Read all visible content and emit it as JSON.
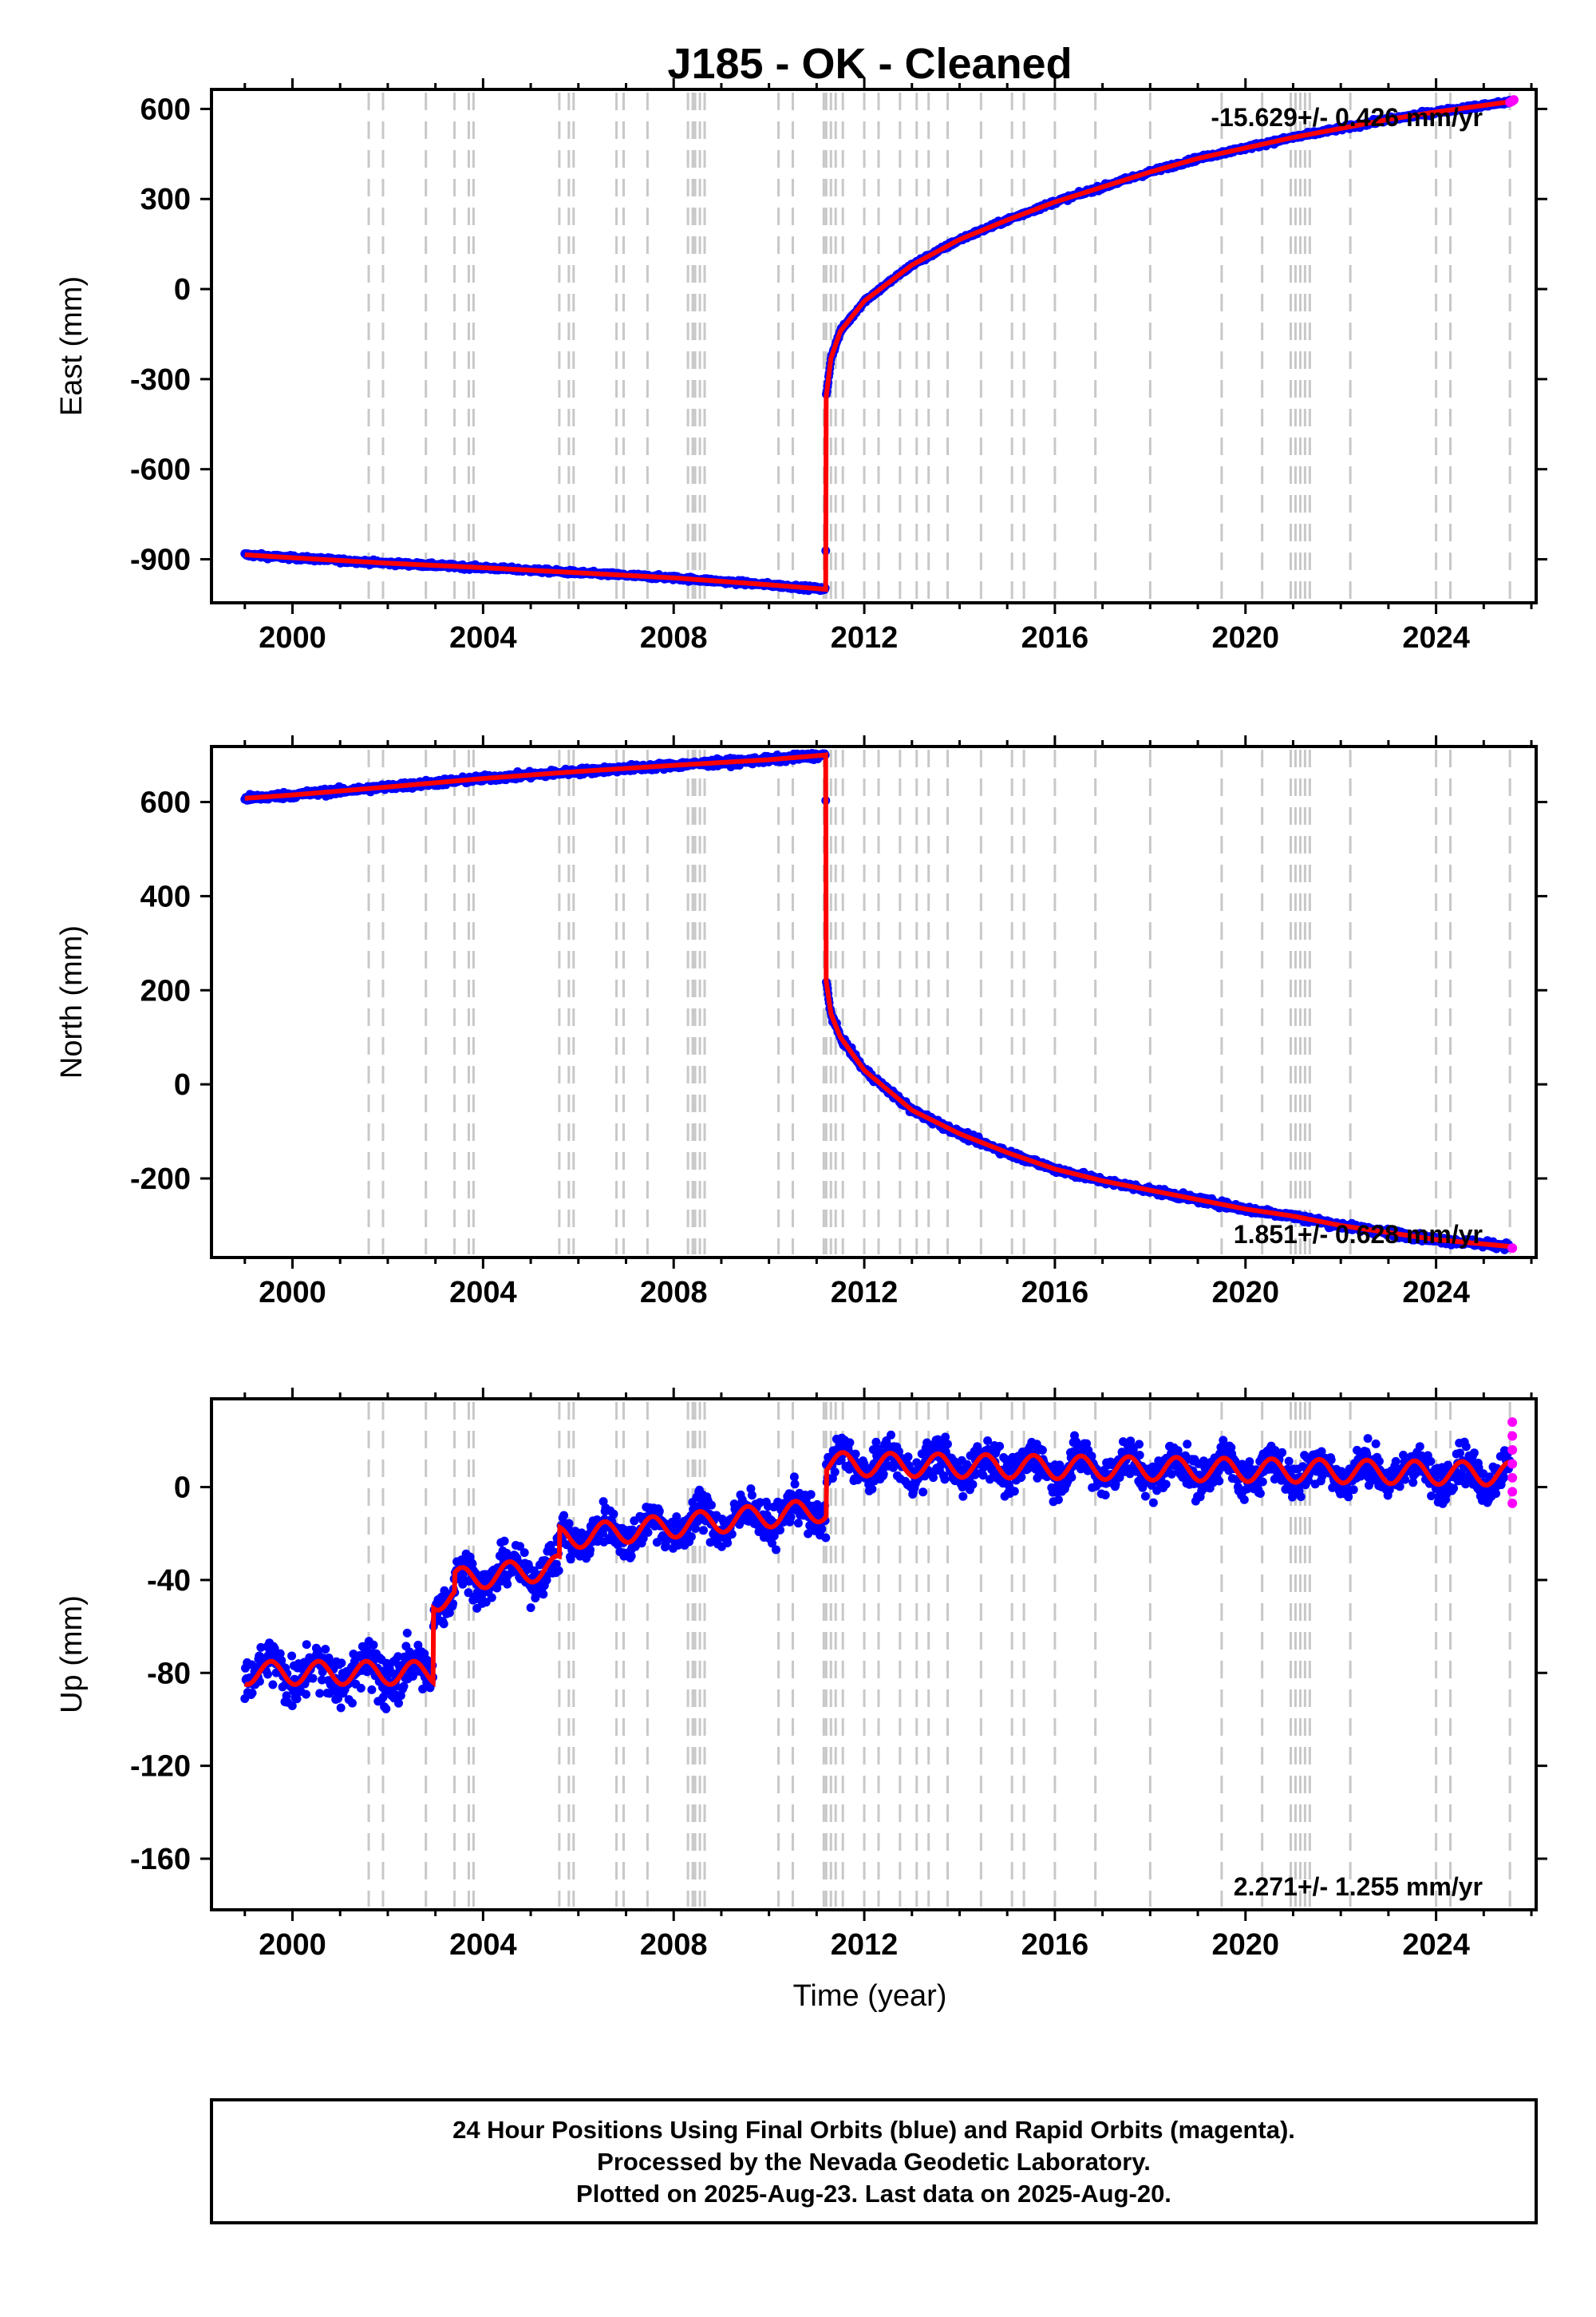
{
  "title": "J185  - OK - Cleaned",
  "x_axis_label": "Time (year)",
  "footer": {
    "line1": "24 Hour Positions Using Final Orbits (blue) and Rapid Orbits (magenta).",
    "line2": "Processed by the Nevada Geodetic Laboratory.",
    "line3": "Plotted on 2025-Aug-23. Last data on 2025-Aug-20."
  },
  "colors": {
    "final_orbits": "#0000ff",
    "rapid_orbits": "#ff00ff",
    "model": "#ff0000",
    "event_lines": "#c8c8c8"
  },
  "event_years": [
    2001.6,
    2001.9,
    2002.8,
    2003.4,
    2003.7,
    2003.8,
    2005.6,
    2005.8,
    2005.9,
    2006.8,
    2006.95,
    2007.45,
    2008.3,
    2008.4,
    2008.45,
    2008.55,
    2008.65,
    2010.2,
    2010.5,
    2011.15,
    2011.2,
    2011.3,
    2011.4,
    2011.55,
    2012.0,
    2012.3,
    2012.75,
    2013.1,
    2013.35,
    2013.75,
    2014.45,
    2015.1,
    2015.35,
    2016.0,
    2016.85,
    2018.0,
    2019.5,
    2020.35,
    2020.95,
    2021.05,
    2021.15,
    2021.25,
    2021.35,
    2022.2,
    2024.0,
    2024.3,
    2025.55
  ],
  "chart_data": [
    {
      "type": "scatter",
      "component": "East",
      "ylabel": "East (mm)",
      "xlim": [
        1998.3,
        2026.1
      ],
      "ylim": [
        -1045,
        665
      ],
      "xticks": [
        "2000",
        "2004",
        "2008",
        "2012",
        "2016",
        "2020",
        "2024"
      ],
      "yticks": [
        "600",
        "300",
        "0",
        "-300",
        "-600",
        "-900"
      ],
      "grid": false,
      "rate_label": "-15.629+/- 0.426 mm/yr",
      "rate_position": "top-right",
      "model_x": [
        1999.0,
        2000.0,
        2002.0,
        2004.0,
        2006.0,
        2008.0,
        2010.0,
        2011.19,
        2011.2,
        2011.3,
        2011.5,
        2012.0,
        2013.0,
        2014.0,
        2015.0,
        2016.0,
        2017.0,
        2018.0,
        2019.0,
        2020.0,
        2021.0,
        2022.0,
        2023.0,
        2024.0,
        2025.6
      ],
      "model_y": [
        -885,
        -895,
        -913,
        -928,
        -945,
        -962,
        -985,
        -1000,
        -360,
        -230,
        -140,
        -40,
        80,
        165,
        230,
        290,
        340,
        390,
        435,
        470,
        505,
        535,
        565,
        590,
        625
      ],
      "rapid_x": [
        2025.55,
        2025.6,
        2025.63
      ],
      "rapid_y": [
        622,
        626,
        630
      ]
    },
    {
      "type": "scatter",
      "component": "North",
      "ylabel": "North (mm)",
      "xlim": [
        1998.3,
        2026.1
      ],
      "ylim": [
        -368,
        718
      ],
      "xticks": [
        "2000",
        "2004",
        "2008",
        "2012",
        "2016",
        "2020",
        "2024"
      ],
      "yticks": [
        "600",
        "400",
        "200",
        "0",
        "-200"
      ],
      "grid": false,
      "rate_label": "1.851+/- 0.628 mm/yr",
      "rate_position": "bottom-right",
      "model_x": [
        1999.0,
        2000.0,
        2002.0,
        2004.0,
        2006.0,
        2008.0,
        2010.0,
        2011.19,
        2011.2,
        2011.3,
        2011.5,
        2012.0,
        2013.0,
        2014.0,
        2015.0,
        2016.0,
        2017.0,
        2018.0,
        2019.0,
        2020.0,
        2021.0,
        2022.0,
        2023.0,
        2024.0,
        2025.6
      ],
      "model_y": [
        608,
        615,
        632,
        650,
        665,
        678,
        690,
        700,
        220,
        150,
        100,
        30,
        -55,
        -105,
        -145,
        -180,
        -205,
        -225,
        -245,
        -265,
        -280,
        -300,
        -315,
        -330,
        -345
      ],
      "rapid_x": [
        2025.6
      ],
      "rapid_y": [
        -348
      ]
    },
    {
      "type": "scatter",
      "component": "Up",
      "ylabel": "Up (mm)",
      "xlim": [
        1998.3,
        2026.1
      ],
      "ylim": [
        -182,
        38
      ],
      "xticks": [
        "2000",
        "2004",
        "2008",
        "2012",
        "2016",
        "2020",
        "2024"
      ],
      "yticks": [
        "0",
        "-40",
        "-80",
        "-120",
        "-160"
      ],
      "grid": false,
      "rate_label": "2.271+/- 1.255 mm/yr",
      "rate_position": "bottom-right",
      "model_segments": [
        {
          "from": 1999.0,
          "to": 2002.95,
          "base": -80,
          "trend": 0.0
        },
        {
          "from": 2002.95,
          "to": 2003.4,
          "base": -48,
          "trend": 0.0
        },
        {
          "from": 2003.4,
          "to": 2005.6,
          "base": -40,
          "trend": 2.5
        },
        {
          "from": 2005.6,
          "to": 2011.2,
          "base": -22,
          "trend": 2.2
        },
        {
          "from": 2011.2,
          "to": 2025.6,
          "base": 10,
          "trend": -0.3
        }
      ],
      "seasonal_amplitude_mm": 5,
      "rapid_x": [
        2025.6,
        2025.6,
        2025.6,
        2025.6,
        2025.6,
        2025.6,
        2025.6
      ],
      "rapid_y": [
        28,
        22,
        16,
        10,
        4,
        -2,
        -7
      ]
    }
  ]
}
